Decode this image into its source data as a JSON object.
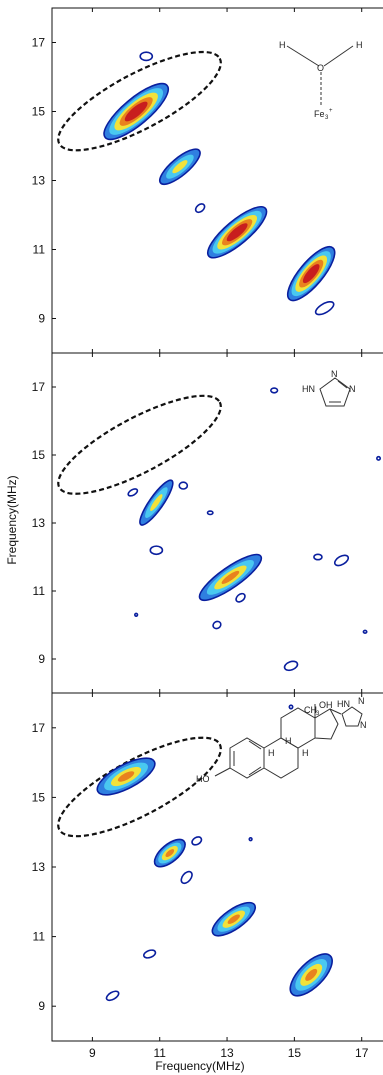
{
  "chart_data": {
    "type": "heatmap",
    "xlabel": "Frequency(MHz)",
    "ylabel": "Frequency(MHz)",
    "xlim": [
      7.8,
      17.9
    ],
    "ylim": [
      8.0,
      18.0
    ],
    "x_ticks": [
      9,
      11,
      13,
      15,
      17
    ],
    "y_ticks": [
      9,
      11,
      13,
      15,
      17
    ],
    "colormap": [
      "#0a1f9e",
      "#2f7fe0",
      "#49c8f0",
      "#f2e23a",
      "#e9821e",
      "#c81e1e"
    ],
    "panels": [
      {
        "molecule_labels": {
          "atom1": "H",
          "atom2": "H",
          "atom3": "O",
          "metal": "Fe",
          "metal_sub": "3",
          "charge": "+"
        },
        "ellipse": {
          "cx": 10.4,
          "cy": 15.3,
          "rx": 2.7,
          "ry": 0.8,
          "angle": -28
        },
        "peaks": [
          {
            "x": 10.3,
            "y": 15.0,
            "rx": 1.2,
            "ry": 0.38,
            "angle": -40,
            "level": 5
          },
          {
            "x": 10.6,
            "y": 16.6,
            "rx": 0.18,
            "ry": 0.12,
            "angle": 0,
            "level": 0
          },
          {
            "x": 11.6,
            "y": 13.4,
            "rx": 0.75,
            "ry": 0.25,
            "angle": -40,
            "level": 2
          },
          {
            "x": 12.2,
            "y": 12.2,
            "rx": 0.15,
            "ry": 0.1,
            "angle": -40,
            "level": 0
          },
          {
            "x": 13.3,
            "y": 11.5,
            "rx": 1.1,
            "ry": 0.34,
            "angle": -40,
            "level": 5
          },
          {
            "x": 15.5,
            "y": 10.3,
            "rx": 1.0,
            "ry": 0.34,
            "angle": -50,
            "level": 5
          },
          {
            "x": 15.9,
            "y": 9.3,
            "rx": 0.3,
            "ry": 0.13,
            "angle": -30,
            "level": 0
          }
        ]
      },
      {
        "molecule_labels": {
          "nh": "HN",
          "n1": "N",
          "n2": "N"
        },
        "ellipse": {
          "cx": 10.4,
          "cy": 15.3,
          "rx": 2.7,
          "ry": 0.8,
          "angle": -28
        },
        "peaks": [
          {
            "x": 14.4,
            "y": 16.9,
            "rx": 0.1,
            "ry": 0.07,
            "angle": 0,
            "level": 0
          },
          {
            "x": 10.9,
            "y": 13.6,
            "rx": 0.8,
            "ry": 0.2,
            "angle": -55,
            "level": 2
          },
          {
            "x": 11.7,
            "y": 14.1,
            "rx": 0.12,
            "ry": 0.1,
            "angle": 0,
            "level": 0
          },
          {
            "x": 10.2,
            "y": 13.9,
            "rx": 0.15,
            "ry": 0.08,
            "angle": -30,
            "level": 0
          },
          {
            "x": 12.5,
            "y": 13.3,
            "rx": 0.08,
            "ry": 0.05,
            "angle": 0,
            "level": 0
          },
          {
            "x": 10.9,
            "y": 12.2,
            "rx": 0.18,
            "ry": 0.12,
            "angle": 0,
            "level": 0
          },
          {
            "x": 13.1,
            "y": 11.4,
            "rx": 1.1,
            "ry": 0.3,
            "angle": -35,
            "level": 3
          },
          {
            "x": 13.4,
            "y": 10.8,
            "rx": 0.15,
            "ry": 0.1,
            "angle": -40,
            "level": 0
          },
          {
            "x": 12.7,
            "y": 10.0,
            "rx": 0.12,
            "ry": 0.1,
            "angle": -30,
            "level": 0
          },
          {
            "x": 15.7,
            "y": 12.0,
            "rx": 0.12,
            "ry": 0.08,
            "angle": 0,
            "level": 0
          },
          {
            "x": 16.4,
            "y": 11.9,
            "rx": 0.22,
            "ry": 0.12,
            "angle": -30,
            "level": 0
          },
          {
            "x": 14.9,
            "y": 8.8,
            "rx": 0.2,
            "ry": 0.12,
            "angle": -20,
            "level": 0
          },
          {
            "x": 10.3,
            "y": 10.3,
            "rx": 0.04,
            "ry": 0.04,
            "angle": 0,
            "level": 0
          },
          {
            "x": 17.1,
            "y": 9.8,
            "rx": 0.05,
            "ry": 0.04,
            "angle": 0,
            "level": 0
          },
          {
            "x": 17.5,
            "y": 14.9,
            "rx": 0.05,
            "ry": 0.05,
            "angle": 0,
            "level": 0
          }
        ]
      },
      {
        "molecule_labels": {
          "ho": "HO",
          "oh": "OH",
          "ch3": "CH",
          "ch3_sub": "3",
          "h1": "H",
          "h2": "H",
          "h3": "H",
          "nh": "HN",
          "n1": "N",
          "n2": "N"
        },
        "ellipse": {
          "cx": 10.4,
          "cy": 15.3,
          "rx": 2.7,
          "ry": 0.8,
          "angle": -28
        },
        "peaks": [
          {
            "x": 10.0,
            "y": 15.6,
            "rx": 0.95,
            "ry": 0.34,
            "angle": -28,
            "level": 3
          },
          {
            "x": 11.3,
            "y": 13.4,
            "rx": 0.55,
            "ry": 0.25,
            "angle": -40,
            "level": 3
          },
          {
            "x": 12.1,
            "y": 13.75,
            "rx": 0.15,
            "ry": 0.1,
            "angle": -30,
            "level": 0
          },
          {
            "x": 11.8,
            "y": 12.7,
            "rx": 0.2,
            "ry": 0.12,
            "angle": -50,
            "level": 0
          },
          {
            "x": 13.2,
            "y": 11.5,
            "rx": 0.75,
            "ry": 0.28,
            "angle": -35,
            "level": 3
          },
          {
            "x": 10.7,
            "y": 10.5,
            "rx": 0.18,
            "ry": 0.1,
            "angle": -20,
            "level": 0
          },
          {
            "x": 15.5,
            "y": 9.9,
            "rx": 0.8,
            "ry": 0.35,
            "angle": -45,
            "level": 3
          },
          {
            "x": 9.6,
            "y": 9.3,
            "rx": 0.2,
            "ry": 0.1,
            "angle": -30,
            "level": 0
          },
          {
            "x": 13.7,
            "y": 13.8,
            "rx": 0.04,
            "ry": 0.04,
            "angle": 0,
            "level": 0
          },
          {
            "x": 14.9,
            "y": 17.6,
            "rx": 0.05,
            "ry": 0.05,
            "angle": 0,
            "level": 0
          }
        ]
      }
    ]
  }
}
